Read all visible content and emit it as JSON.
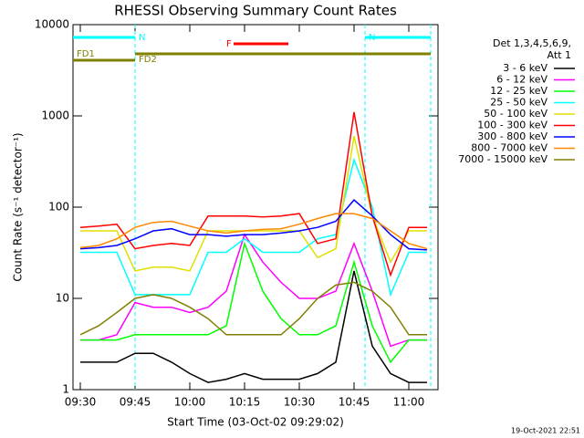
{
  "chart_data": {
    "type": "line",
    "title": "RHESSI Observing Summary Count Rates",
    "x_label": "Start Time (03-Oct-02 09:29:02)",
    "y_label": "Count Rate (s⁻¹ detector⁻¹)",
    "legend_title": [
      "Det 1,3,4,5,6,9,",
      "Att 1"
    ],
    "footer": "19-Oct-2021 22:51",
    "log_y": true,
    "xlim": [
      "09:28",
      "11:08"
    ],
    "xticks": [
      "09:30",
      "09:45",
      "10:00",
      "10:15",
      "10:30",
      "10:45",
      "11:00"
    ],
    "ylim": [
      1,
      10000
    ],
    "yticks": [
      1,
      10,
      100,
      1000,
      10000
    ],
    "x": [
      "09:30",
      "09:35",
      "09:40",
      "09:45",
      "09:50",
      "09:55",
      "10:00",
      "10:05",
      "10:10",
      "10:15",
      "10:20",
      "10:25",
      "10:30",
      "10:35",
      "10:40",
      "10:45",
      "10:50",
      "10:55",
      "11:00",
      "11:05"
    ],
    "series": [
      {
        "name": "3 - 6 keV",
        "color": "#000000",
        "values": [
          2,
          2,
          2,
          2.5,
          2.5,
          2,
          1.5,
          1.2,
          1.3,
          1.5,
          1.3,
          1.3,
          1.3,
          1.5,
          2,
          20,
          3,
          1.5,
          1.2,
          1.2
        ]
      },
      {
        "name": "6 - 12 keV",
        "color": "#ff00ff",
        "values": [
          3.5,
          3.5,
          4,
          9,
          8,
          8,
          7,
          8,
          12,
          50,
          25,
          15,
          10,
          10,
          12,
          40,
          12,
          3,
          3.5,
          3.5
        ]
      },
      {
        "name": "12 - 25 keV",
        "color": "#00ff00",
        "values": [
          3.5,
          3.5,
          3.5,
          4,
          4,
          4,
          4,
          4,
          5,
          40,
          12,
          6,
          4,
          4,
          5,
          25,
          5,
          2,
          3.5,
          3.5
        ]
      },
      {
        "name": "25 - 50 keV",
        "color": "#00ffff",
        "values": [
          32,
          32,
          32,
          11,
          11,
          11,
          11,
          32,
          32,
          45,
          32,
          32,
          32,
          45,
          50,
          330,
          100,
          11,
          32,
          32
        ]
      },
      {
        "name": "50 - 100 keV",
        "color": "#e0e000",
        "values": [
          55,
          55,
          55,
          20,
          22,
          22,
          20,
          55,
          55,
          55,
          55,
          55,
          55,
          28,
          35,
          600,
          80,
          25,
          55,
          55
        ]
      },
      {
        "name": "100 - 300 keV",
        "color": "#ff0000",
        "values": [
          60,
          62,
          65,
          35,
          38,
          40,
          38,
          80,
          80,
          80,
          78,
          80,
          85,
          40,
          45,
          1100,
          80,
          18,
          60,
          60
        ]
      },
      {
        "name": "300 - 800 keV",
        "color": "#0000ff",
        "values": [
          35,
          36,
          38,
          45,
          55,
          58,
          50,
          50,
          48,
          50,
          50,
          52,
          55,
          60,
          70,
          120,
          80,
          50,
          35,
          34
        ]
      },
      {
        "name": "800 - 7000 keV",
        "color": "#ff8800",
        "values": [
          36,
          38,
          45,
          60,
          68,
          70,
          62,
          55,
          52,
          55,
          57,
          58,
          65,
          75,
          85,
          85,
          75,
          55,
          40,
          35
        ]
      },
      {
        "name": "7000 - 15000 keV",
        "color": "#808000",
        "values": [
          4,
          5,
          7,
          10,
          11,
          10,
          8,
          6,
          4,
          4,
          4,
          4,
          6,
          10,
          14,
          15,
          12,
          8,
          4,
          4
        ]
      }
    ],
    "flags": [
      {
        "label": "N",
        "color": "#00ffff",
        "start": "09:28",
        "end": "09:45"
      },
      {
        "label": "N",
        "color": "#00ffff",
        "start": "10:48",
        "end": "11:06"
      },
      {
        "label": "F",
        "color": "#ff0000",
        "start": "10:12",
        "end": "10:27"
      },
      {
        "label": "FD1",
        "color": "#808000",
        "start": "09:28",
        "end": "09:45"
      },
      {
        "label": "FD2",
        "color": "#808000",
        "start": "09:45",
        "end": "11:06"
      }
    ]
  }
}
